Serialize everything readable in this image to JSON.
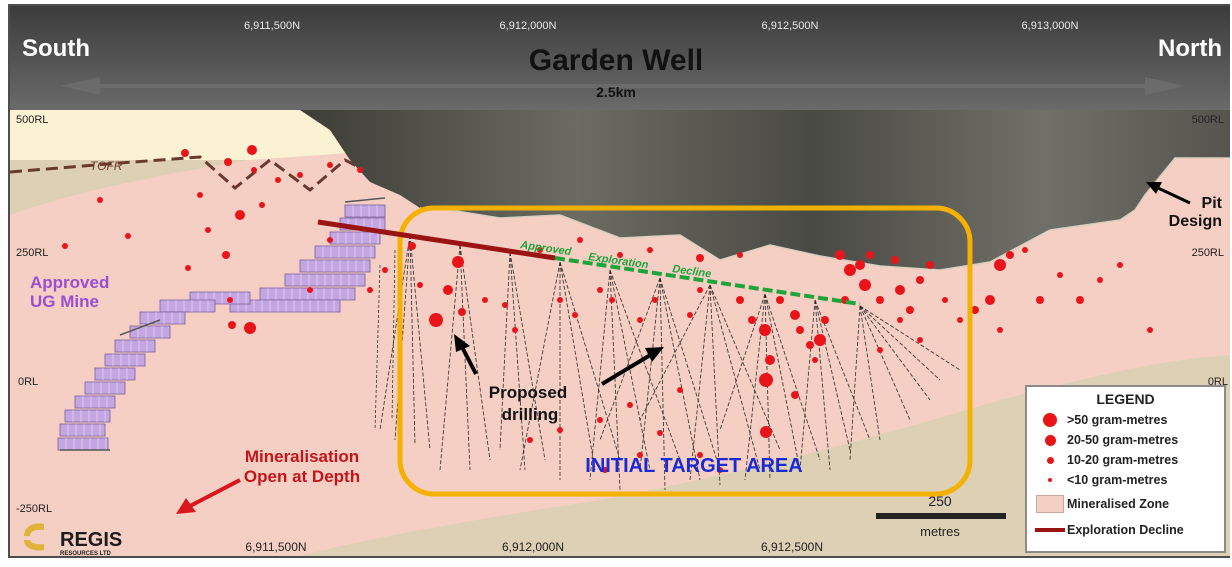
{
  "header": {
    "south_label": "South",
    "north_label": "North",
    "title": "Garden Well",
    "distance": "2.5km"
  },
  "northings_top": [
    "6,911,500N",
    "6,912,000N",
    "6,912,500N",
    "6,913,000N"
  ],
  "northings_bottom": [
    "6,911,500N",
    "6,912,000N",
    "6,912,500N"
  ],
  "rl_left": [
    "500RL",
    "250RL",
    "0RL",
    "-250RL"
  ],
  "rl_right": [
    "500RL",
    "250RL",
    "0RL"
  ],
  "labels": {
    "tofr": "TOFR",
    "pit_design": [
      "Pit",
      "Design"
    ],
    "ug_mine": [
      "Approved",
      "UG Mine"
    ],
    "decline": [
      "Approved",
      "Exploration",
      "Decline"
    ],
    "proposed_drilling": [
      "Proposed",
      "drilling"
    ],
    "target_area": "INITIAL TARGET AREA",
    "mineralisation": [
      "Mineralisation",
      "Open at Depth"
    ]
  },
  "scale": {
    "value": "250",
    "unit": "metres"
  },
  "legend": {
    "title": "LEGEND",
    "items": [
      {
        "label": ">50 gram-metres",
        "symbol": "dot-large"
      },
      {
        "label": "20-50 gram-metres",
        "symbol": "dot-medium"
      },
      {
        "label": "10-20 gram-metres",
        "symbol": "dot-small"
      },
      {
        "label": "<10 gram-metres",
        "symbol": "dot-tiny"
      },
      {
        "label": "Mineralised Zone",
        "symbol": "swatch"
      },
      {
        "label": "Exploration Decline",
        "symbol": "line"
      }
    ]
  },
  "logo": {
    "name": "REGIS",
    "sub": "RESOURCES LTD"
  },
  "colors": {
    "frame": "#4a4a4a",
    "sky": "#fbf1d3",
    "mineralised_zone": "#f6cfc4",
    "drill_hit": "#e8141a",
    "decline_approved": "#9b1414",
    "decline_exploration": "#1fa43a",
    "target_box": "#f5b100",
    "target_text": "#1a2ad6",
    "ug_mine": "#c4a6e3",
    "ug_label": "#9a4fd1"
  }
}
